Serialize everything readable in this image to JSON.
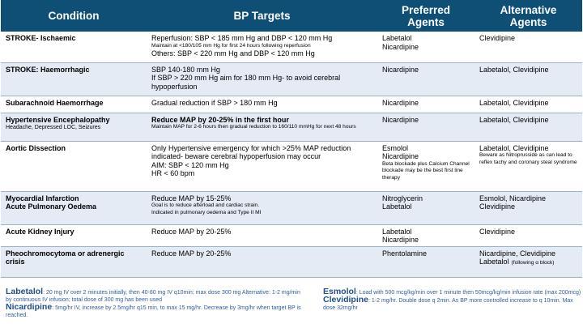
{
  "headers": {
    "condition": "Condition",
    "targets": "BP Targets",
    "preferred": "Preferred Agents",
    "alternative": "Alternative Agents"
  },
  "rows": [
    {
      "condition": "STROKE- Ischaemic",
      "sub": "",
      "targets": [
        {
          "text": "Reperfusion: SBP < 185 mm Hg and DBP < 120 mm Hg",
          "style": "normal"
        },
        {
          "text": "Maintain at <180/105 mm Hg for first 24 hours following reperfusion",
          "style": "small"
        },
        {
          "text": "Others: SBP < 220 mm Hg and DBP < 120 mm Hg",
          "style": "normal"
        }
      ],
      "preferred": [
        {
          "text": "Labetalol",
          "style": "normal"
        },
        {
          "text": "Nicardipine",
          "style": "normal"
        }
      ],
      "alternative": [
        {
          "text": "Clevidipine",
          "style": "normal"
        }
      ]
    },
    {
      "condition": "STROKE: Haemorrhagic",
      "sub": "",
      "targets": [
        {
          "text": "SBP 140-180 mm Hg",
          "style": "normal"
        },
        {
          "text": "If SBP > 220 mm Hg aim for 180 mm Hg- to avoid cerebral hypoperfusion",
          "style": "normal"
        }
      ],
      "preferred": [
        {
          "text": "Nicardipine",
          "style": "normal"
        }
      ],
      "alternative": [
        {
          "text": "Labetalol, Clevidipine",
          "style": "normal"
        }
      ]
    },
    {
      "condition": "Subarachnoid Haemorrhage",
      "sub": "",
      "targets": [
        {
          "text": "Gradual reduction if SBP > 180 mm Hg",
          "style": "normal"
        }
      ],
      "preferred": [
        {
          "text": "Nicardipine",
          "style": "normal"
        }
      ],
      "alternative": [
        {
          "text": "Labetalol, Clevidipine",
          "style": "normal"
        }
      ]
    },
    {
      "condition": "Hypertensive Encephalopathy",
      "sub": "Headache, Depressed LOC, Seizures",
      "targets": [
        {
          "text": "Reduce MAP by 20-25% in the first hour",
          "style": "bold"
        },
        {
          "text": "Maintain MAP for 2-6 hours then gradual reduction to 160/110 mmHg for next 48 hours",
          "style": "small"
        }
      ],
      "preferred": [
        {
          "text": "Nicardipine",
          "style": "normal"
        }
      ],
      "alternative": [
        {
          "text": "Labetalol, Clevidipine",
          "style": "normal"
        }
      ]
    },
    {
      "condition": "Aortic Dissection",
      "sub": "",
      "targets": [
        {
          "text": "Only Hypertensive emergency for which >25% MAP reduction indicated- beware cerebral hypoperfusion may occur",
          "style": "normal"
        },
        {
          "text": "AIM: SBP < 120 mm Hg",
          "style": "normal"
        },
        {
          "text": "HR < 60 bpm",
          "style": "normal"
        }
      ],
      "preferred": [
        {
          "text": "Esmolol",
          "style": "normal"
        },
        {
          "text": "Nicardipine",
          "style": "normal"
        },
        {
          "text": "Beta blockade plus Calcium Channel blockade may be the best first line therapy",
          "style": "small"
        }
      ],
      "alternative": [
        {
          "text": "Labetalol, Clevidipine",
          "style": "normal"
        },
        {
          "text": "Beware as Nitroprusside as can lead to reflex tachy and coronary steal syndrome",
          "style": "small"
        }
      ]
    },
    {
      "condition": "Myocardial Infarction",
      "condition_2": "Acute Pulmonary Oedema",
      "sub": "",
      "targets": [
        {
          "text": "Reduce MAP by 15-25%",
          "style": "normal"
        },
        {
          "text": "Goal is to reduce afterload and cardiac strain.",
          "style": "small"
        },
        {
          "text": "Indicated in pulmonary oedema and Type II MI",
          "style": "small"
        }
      ],
      "preferred": [
        {
          "text": "Nitroglycerin",
          "style": "normal"
        },
        {
          "text": "Labetalol",
          "style": "normal"
        }
      ],
      "alternative": [
        {
          "text": "Esmolol, Nicardipine",
          "style": "normal"
        },
        {
          "text": "Clevidipine",
          "style": "normal"
        }
      ]
    },
    {
      "condition": "Acute Kidney Injury",
      "sub": "",
      "targets": [
        {
          "text": "Reduce MAP by 20-25%",
          "style": "normal"
        }
      ],
      "preferred": [
        {
          "text": "Labetalol",
          "style": "normal"
        },
        {
          "text": "Nicardipine",
          "style": "normal"
        }
      ],
      "alternative": [
        {
          "text": "Clevidipine",
          "style": "normal"
        }
      ]
    },
    {
      "condition": "Pheochromocytoma or adrenergic crisis",
      "sub": "",
      "targets": [
        {
          "text": "Reduce MAP by 20-25%",
          "style": "normal"
        }
      ],
      "preferred": [
        {
          "text": "Phentolamine",
          "style": "normal"
        }
      ],
      "alternative": [
        {
          "text": "Nicardipine, Clevidipine",
          "style": "normal"
        },
        {
          "text": "Labetalol",
          "style": "normal"
        }
      ],
      "alternative_suffix": "(following α block)"
    }
  ],
  "notes": {
    "labetalol_name": "Labetalol",
    "labetalol_dose": ": 20 mg IV over 2 minutes initially, then 40-80 mg IV q10min; max dose 300 mg Alternative: 1-2 mg/min by continuous IV infusion; total dose of 300 mg has been used",
    "nicardipine_name": "Nicardipine",
    "nicardipine_dose": ": 5mg/hr IV, increase by 2.5mg/hr q15 min, to max 15 mg/hr. Decrease by 3mg/hr when target BP is reached.",
    "esmolol_name": "Esmolol",
    "esmolol_dose": ": Load with 500 mcg/kg/min over 1 minute then 50mcg/kg/min infusion rate (max 200mcg)",
    "clevidipine_name": "Clevidipine",
    "clevidipine_dose": ": 1-2 mg/hr. Double dose q 2min. As BP more controlled increase to q 10min. Max dose 32mg/hr"
  },
  "colors": {
    "header_bg": "#0f4f76",
    "stripe": "#e4ebf4",
    "note_text": "#2f5d9e",
    "note_drug": "#1f4e8c"
  }
}
